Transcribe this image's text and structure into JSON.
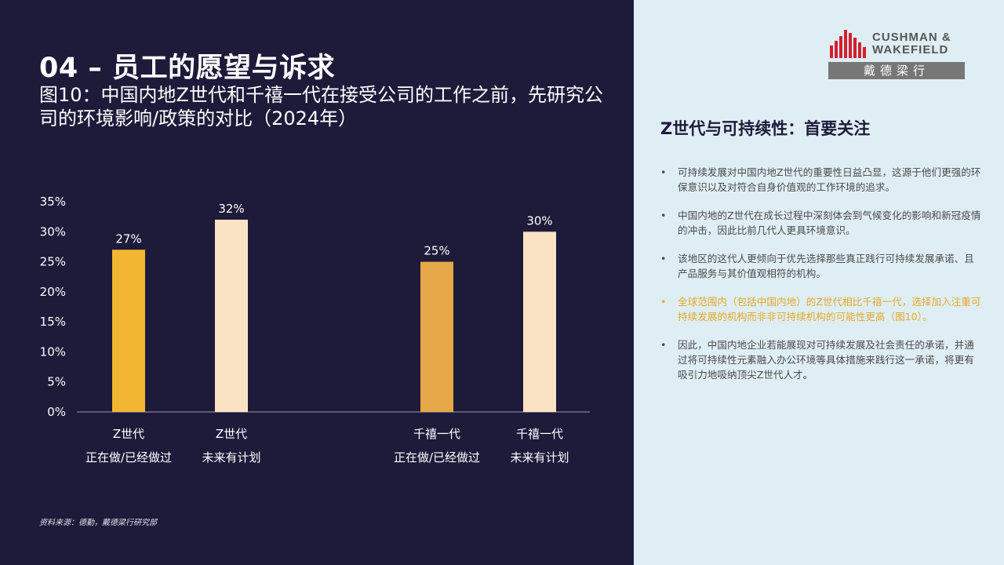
{
  "title": "04 – 员工的愿望与诉求",
  "subtitle": "图10：中国内地Z世代和千禧一代在接受公司的工作之前，先研究公司的环境影响/政策的对比（2024年）",
  "source": "资料来源：德勤，戴德梁行研究部",
  "logo": {
    "line1": "CUSHMAN &",
    "line2": "WAKEFIELD",
    "cn": "戴德梁行"
  },
  "side_title": "Z世代与可持续性：首要关注",
  "bullets": [
    "可持续发展对中国内地Z世代的重要性日益凸显，这源于他们更强的环保意识以及对符合自身价值观的工作环境的追求。",
    "中国内地的Z世代在成长过程中深刻体会到气候变化的影响和新冠疫情的冲击，因此比前几代人更具环境意识。",
    "该地区的这代人更倾向于优先选择那些真正践行可持续发展承诺、且产品服务与其价值观相符的机构。",
    "全球范围内（包括中国内地）的Z世代相比千禧一代，选择加入注重可持续发展的机构而非非可持续机构的可能性更高（图10）。",
    "因此，中国内地企业若能展现对可持续发展及社会责任的承诺，并通过将可持续性元素融入办公环境等具体措施来践行这一承诺，将更有吸引力地吸纳顶尖Z世代人才。"
  ],
  "colors": {
    "background": "#1e1a3a",
    "panel": "#dfeef5",
    "highlight": "#e5a82a",
    "logo_red": "#d2202f"
  },
  "chart_data": {
    "type": "bar",
    "categories": [
      [
        "Z世代",
        "正在做/已经做过"
      ],
      [
        "Z世代",
        "未来有计划"
      ],
      [
        "千禧一代",
        "正在做/已经做过"
      ],
      [
        "千禧一代",
        "未来有计划"
      ]
    ],
    "values": [
      27,
      32,
      25,
      30
    ],
    "value_labels": [
      "27%",
      "32%",
      "25%",
      "30%"
    ],
    "bar_colors": [
      "#f2b731",
      "#fae3c5",
      "#e7a847",
      "#fae3c5"
    ],
    "yticks": [
      "0%",
      "5%",
      "10%",
      "15%",
      "20%",
      "25%",
      "30%",
      "35%"
    ],
    "ylim": [
      0,
      35
    ],
    "grid": false
  }
}
